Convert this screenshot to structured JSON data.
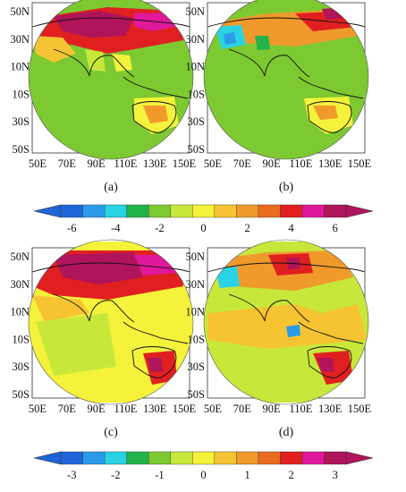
{
  "panels": [
    {
      "id": "a",
      "label": "(a)",
      "lat_labels": [
        "50N",
        "30N",
        "10N",
        "10S",
        "30S",
        "50S"
      ],
      "lon_labels": [
        "50E",
        "70E",
        "90E",
        "110E",
        "130E",
        "150E"
      ]
    },
    {
      "id": "b",
      "label": "(b)",
      "lat_labels": [
        "50N",
        "30N",
        "10N",
        "10S",
        "30S",
        "50S"
      ],
      "lon_labels": [
        "50E",
        "70E",
        "90E",
        "110E",
        "130E",
        "150E"
      ]
    },
    {
      "id": "c",
      "label": "(c)",
      "lat_labels": [
        "50N",
        "30N",
        "10N",
        "10S",
        "30S",
        "50S"
      ],
      "lon_labels": [
        "50E",
        "70E",
        "90E",
        "110E",
        "130E",
        "150E"
      ]
    },
    {
      "id": "d",
      "label": "(d)",
      "lat_labels": [
        "50N",
        "30N",
        "10N",
        "10S",
        "30S",
        "50S"
      ],
      "lon_labels": [
        "50E",
        "70E",
        "90E",
        "110E",
        "130E",
        "150E"
      ]
    }
  ],
  "colorbars": [
    {
      "id": "top",
      "tick_labels": [
        "-6",
        "-4",
        "-2",
        "0",
        "2",
        "4",
        "6"
      ]
    },
    {
      "id": "bottom",
      "tick_labels": [
        "-3",
        "-2",
        "-1",
        "0",
        "1",
        "2",
        "3"
      ]
    }
  ],
  "colors": {
    "palette": [
      "#1f64d8",
      "#2a9be8",
      "#29d3e3",
      "#22b34a",
      "#7dc932",
      "#c7e83a",
      "#f4f23a",
      "#f6c432",
      "#f09a2c",
      "#ea6a1e",
      "#e02020",
      "#e0189a",
      "#b0145a"
    ]
  }
}
